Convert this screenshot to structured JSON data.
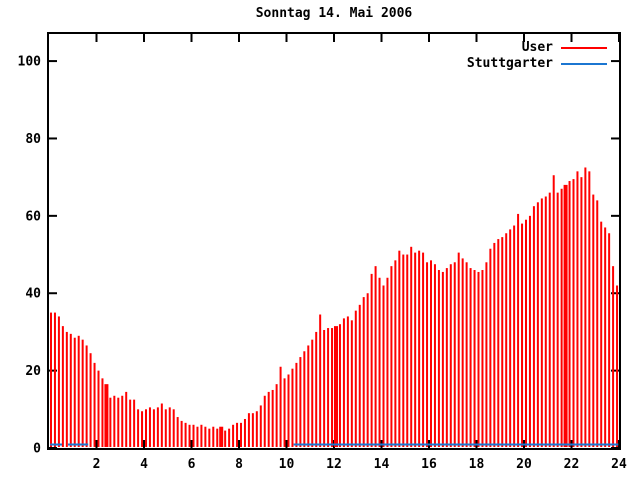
{
  "chart_data": {
    "type": "bar",
    "title": "Sonntag 14. Mai 2006",
    "xlabel": "",
    "ylabel": "",
    "xlim": [
      0,
      24
    ],
    "ylim": [
      0,
      107
    ],
    "x_ticks": [
      2,
      4,
      6,
      8,
      10,
      12,
      14,
      16,
      18,
      20,
      22,
      24
    ],
    "y_ticks": [
      0,
      20,
      40,
      60,
      80,
      100
    ],
    "grid": false,
    "legend_position": "top-right",
    "interval_minutes": 10,
    "series": [
      {
        "name": "User",
        "type": "impulses",
        "color": "#ff0000",
        "start_hour": 0,
        "values": [
          35,
          35,
          34,
          31.5,
          30,
          29.5,
          28.5,
          29,
          28,
          26.5,
          24.5,
          22,
          20,
          18,
          16.5,
          13,
          13.5,
          13,
          13.5,
          14.5,
          12.5,
          12.5,
          10,
          9.5,
          10,
          10.5,
          10,
          10.5,
          11.5,
          10,
          10.5,
          10,
          8,
          7,
          6.5,
          6,
          6,
          5.5,
          6,
          5.5,
          5,
          5.5,
          5,
          5.5,
          4.5,
          5,
          6,
          6.5,
          6.5,
          7.5,
          9,
          9,
          9.5,
          11,
          13.5,
          14.5,
          15,
          16.5,
          21,
          18,
          19,
          20.5,
          22,
          23.5,
          25,
          26.5,
          28,
          30,
          34.5,
          30.5,
          31,
          31,
          31.5,
          32,
          33.5,
          34,
          33,
          35.5,
          37,
          39,
          40,
          45,
          47,
          44,
          42,
          44,
          47,
          48.5,
          51,
          50,
          50,
          52,
          50.5,
          51,
          50.5,
          48,
          48.5,
          47.5,
          46,
          45.5,
          46.5,
          47.5,
          48,
          50.5,
          49,
          48,
          46.5,
          46,
          45.5,
          46,
          48,
          51.5,
          53,
          54,
          54.5,
          55.5,
          56.5,
          57.5,
          60.5,
          58,
          59,
          60,
          62.5,
          63.5,
          64.5,
          65,
          66,
          70.5,
          66,
          67,
          68,
          69,
          69.5,
          71.5,
          70,
          72.5,
          71.5,
          65.5,
          64,
          58.5,
          57,
          55.5,
          47,
          42
        ],
        "wide_bars": [
          14,
          43,
          72,
          130
        ]
      },
      {
        "name": "Stuttgarter",
        "type": "line",
        "color": "#1b76d1",
        "segments": [
          {
            "x_start": 0.05,
            "x_end": 0.55,
            "value": 0.9
          },
          {
            "x_start": 0.8,
            "x_end": 1.65,
            "value": 0.9
          },
          {
            "x_start": 10.3,
            "x_end": 23.97,
            "value": 0.9
          }
        ]
      }
    ],
    "colors": {
      "axis": "#000000",
      "background": "#ffffff",
      "text": "#000000"
    }
  }
}
